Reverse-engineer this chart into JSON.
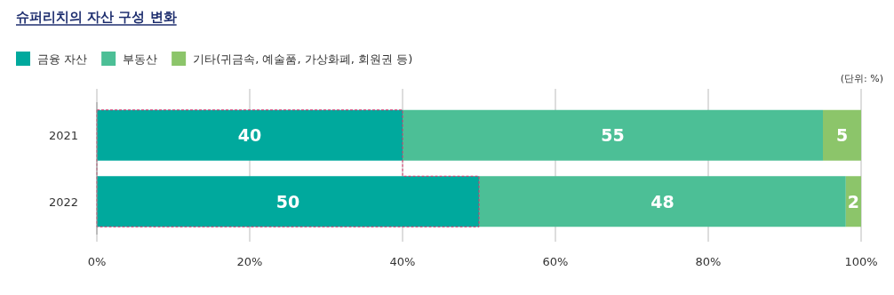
{
  "chart_data": {
    "type": "bar",
    "orientation": "horizontal",
    "stacked": true,
    "title": "슈퍼리치의 자산 구성 변화",
    "annotations": [
      "(단위: %)"
    ],
    "categories": [
      "2021",
      "2022"
    ],
    "series": [
      {
        "name": "금융 자산",
        "color": "#00a99d",
        "values": [
          40,
          50
        ]
      },
      {
        "name": "부동산",
        "color": "#4cbf96",
        "values": [
          55,
          48
        ]
      },
      {
        "name": "기타(귀금속, 예술품, 가상화폐, 회원권 등)",
        "color": "#8cc56a",
        "values": [
          5,
          2
        ]
      }
    ],
    "xlim": [
      0,
      100
    ],
    "xticks": [
      {
        "value": 0,
        "label": "0%"
      },
      {
        "value": 20,
        "label": "20%"
      },
      {
        "value": 40,
        "label": "40%"
      },
      {
        "value": 60,
        "label": "60%"
      },
      {
        "value": 80,
        "label": "80%"
      },
      {
        "value": 100,
        "label": "100%"
      }
    ],
    "grid": "x",
    "legend": "top left",
    "data_labels": true
  }
}
